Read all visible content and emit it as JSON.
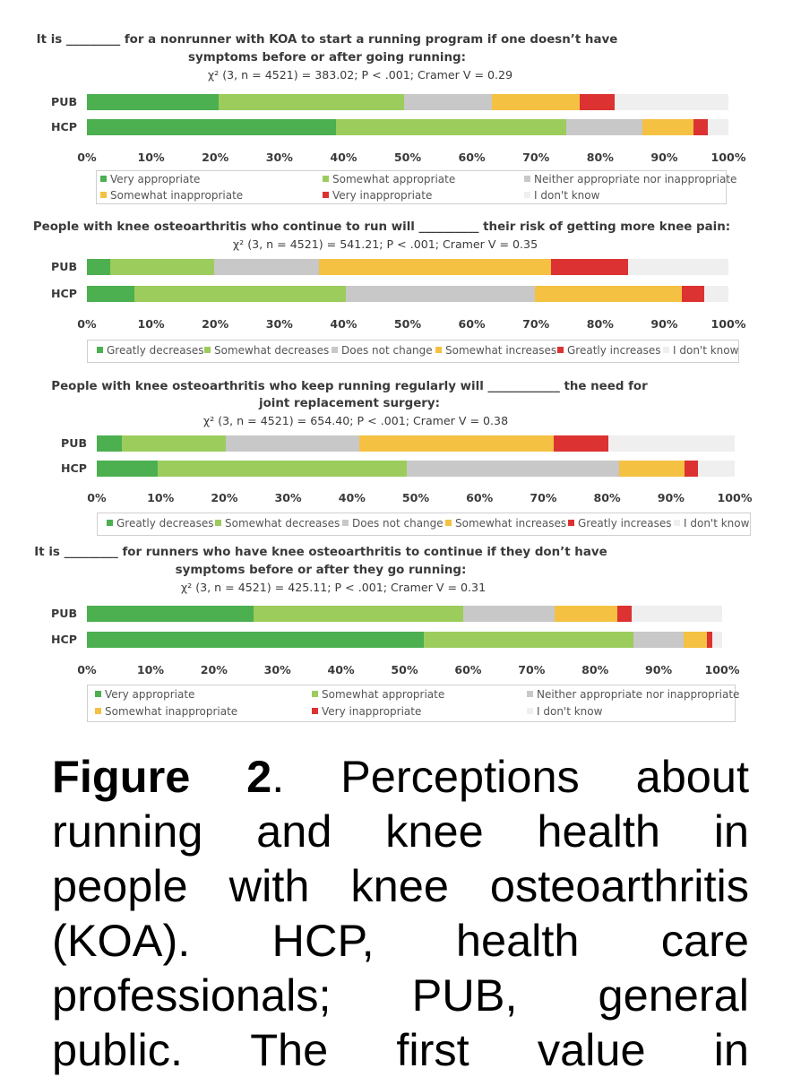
{
  "colors": {
    "Very appropriate": "#4caf50",
    "Somewhat appropriate": "#9ccc5c",
    "Neither appropriate nor inappropriate": "#c8c8c8",
    "Somewhat inappropriate": "#f4c142",
    "Very inappropriate": "#dc3232",
    "I don't know": "#efefef",
    "Greatly decreases": "#4caf50",
    "Somewhat decreases": "#9ccc5c",
    "Does not change": "#c8c8c8",
    "Somewhat increases": "#f4c142",
    "Greatly increases": "#dc3232"
  },
  "chart_data": [
    {
      "type": "bar",
      "orientation": "horizontal-stacked",
      "title_lines": [
        "It is _________ for a nonrunner with KOA to start a running program if one doesn’t have",
        "symptoms before or after going running:"
      ],
      "stat": "χ² (3, n = 4521) = 383.02; P < .001; Cramer V = 0.29",
      "categories": [
        "PUB",
        "HCP"
      ],
      "x_ticks": [
        "0%",
        "10%",
        "20%",
        "30%",
        "40%",
        "50%",
        "60%",
        "70%",
        "80%",
        "90%",
        "100%"
      ],
      "xlim": [
        0,
        100
      ],
      "series": [
        {
          "name": "Very appropriate",
          "values": [
            20.5,
            38.8
          ]
        },
        {
          "name": "Somewhat appropriate",
          "values": [
            28.9,
            35.9
          ]
        },
        {
          "name": "Neither appropriate nor inappropriate",
          "values": [
            13.7,
            11.9
          ]
        },
        {
          "name": "Somewhat inappropriate",
          "values": [
            13.7,
            8.0
          ]
        },
        {
          "name": "Very inappropriate",
          "values": [
            5.4,
            2.2
          ]
        },
        {
          "name": "I don't know",
          "values": [
            17.8,
            3.2
          ]
        }
      ],
      "legend_position": "bottom"
    },
    {
      "type": "bar",
      "orientation": "horizontal-stacked",
      "title_lines": [
        "People with knee osteoarthritis who continue to run will __________ their risk of getting more knee pain:"
      ],
      "stat": "χ² (3, n = 4521) = 541.21; P < .001; Cramer V = 0.35",
      "categories": [
        "PUB",
        "HCP"
      ],
      "x_ticks": [
        "0%",
        "10%",
        "20%",
        "30%",
        "40%",
        "50%",
        "60%",
        "70%",
        "80%",
        "90%",
        "100%"
      ],
      "xlim": [
        0,
        100
      ],
      "series": [
        {
          "name": "Greatly decreases",
          "values": [
            3.6,
            7.4
          ]
        },
        {
          "name": "Somewhat decreases",
          "values": [
            16.3,
            33.0
          ]
        },
        {
          "name": "Does not change",
          "values": [
            16.3,
            29.5
          ]
        },
        {
          "name": "Somewhat increases",
          "values": [
            36.2,
            22.9
          ]
        },
        {
          "name": "Greatly increases",
          "values": [
            12.0,
            3.4
          ]
        },
        {
          "name": "I don't know",
          "values": [
            15.6,
            3.8
          ]
        }
      ],
      "legend_position": "bottom"
    },
    {
      "type": "bar",
      "orientation": "horizontal-stacked",
      "title_lines": [
        "People with knee osteoarthritis who keep running regularly will ____________ the need for",
        "joint replacement surgery:"
      ],
      "stat": "χ² (3, n = 4521) = 654.40; P < .001; Cramer V = 0.38",
      "categories": [
        "PUB",
        "HCP"
      ],
      "x_ticks": [
        "0%",
        "10%",
        "20%",
        "30%",
        "40%",
        "50%",
        "60%",
        "70%",
        "80%",
        "90%",
        "100%"
      ],
      "xlim": [
        0,
        100
      ],
      "series": [
        {
          "name": "Greatly decreases",
          "values": [
            3.9,
            9.6
          ]
        },
        {
          "name": "Somewhat decreases",
          "values": [
            16.3,
            39.0
          ]
        },
        {
          "name": "Does not change",
          "values": [
            21.0,
            33.3
          ]
        },
        {
          "name": "Somewhat increases",
          "values": [
            30.4,
            10.2
          ]
        },
        {
          "name": "Greatly increases",
          "values": [
            8.6,
            2.2
          ]
        },
        {
          "name": "I don't know",
          "values": [
            19.8,
            5.7
          ]
        }
      ],
      "legend_position": "bottom"
    },
    {
      "type": "bar",
      "orientation": "horizontal-stacked",
      "title_lines": [
        "It is _________ for runners who have knee osteoarthritis to continue if they don’t have",
        "symptoms before or after they go running:"
      ],
      "stat": "χ² (3, n = 4521) = 425.11; P < .001; Cramer V = 0.31",
      "categories": [
        "PUB",
        "HCP"
      ],
      "x_ticks": [
        "0%",
        "10%",
        "20%",
        "30%",
        "40%",
        "50%",
        "60%",
        "70%",
        "80%",
        "90%",
        "100%"
      ],
      "xlim": [
        0,
        100
      ],
      "series": [
        {
          "name": "Very appropriate",
          "values": [
            26.2,
            53.1
          ]
        },
        {
          "name": "Somewhat appropriate",
          "values": [
            33.0,
            33.0
          ]
        },
        {
          "name": "Neither appropriate nor inappropriate",
          "values": [
            14.4,
            7.8
          ]
        },
        {
          "name": "Somewhat inappropriate",
          "values": [
            9.9,
            3.7
          ]
        },
        {
          "name": "Very inappropriate",
          "values": [
            2.2,
            0.8
          ]
        },
        {
          "name": "I don't know",
          "values": [
            14.3,
            1.6
          ]
        }
      ],
      "legend_position": "bottom"
    }
  ],
  "caption": {
    "lines": [
      [
        "Figure 2",
        ". Perceptions about"
      ],
      [
        "",
        "running and knee health in"
      ],
      [
        "",
        "people with knee osteoarthritis"
      ],
      [
        "",
        "(KOA). HCP, health care"
      ],
      [
        "",
        "professionals; PUB, general"
      ],
      [
        "",
        "public. The first value in"
      ]
    ]
  }
}
